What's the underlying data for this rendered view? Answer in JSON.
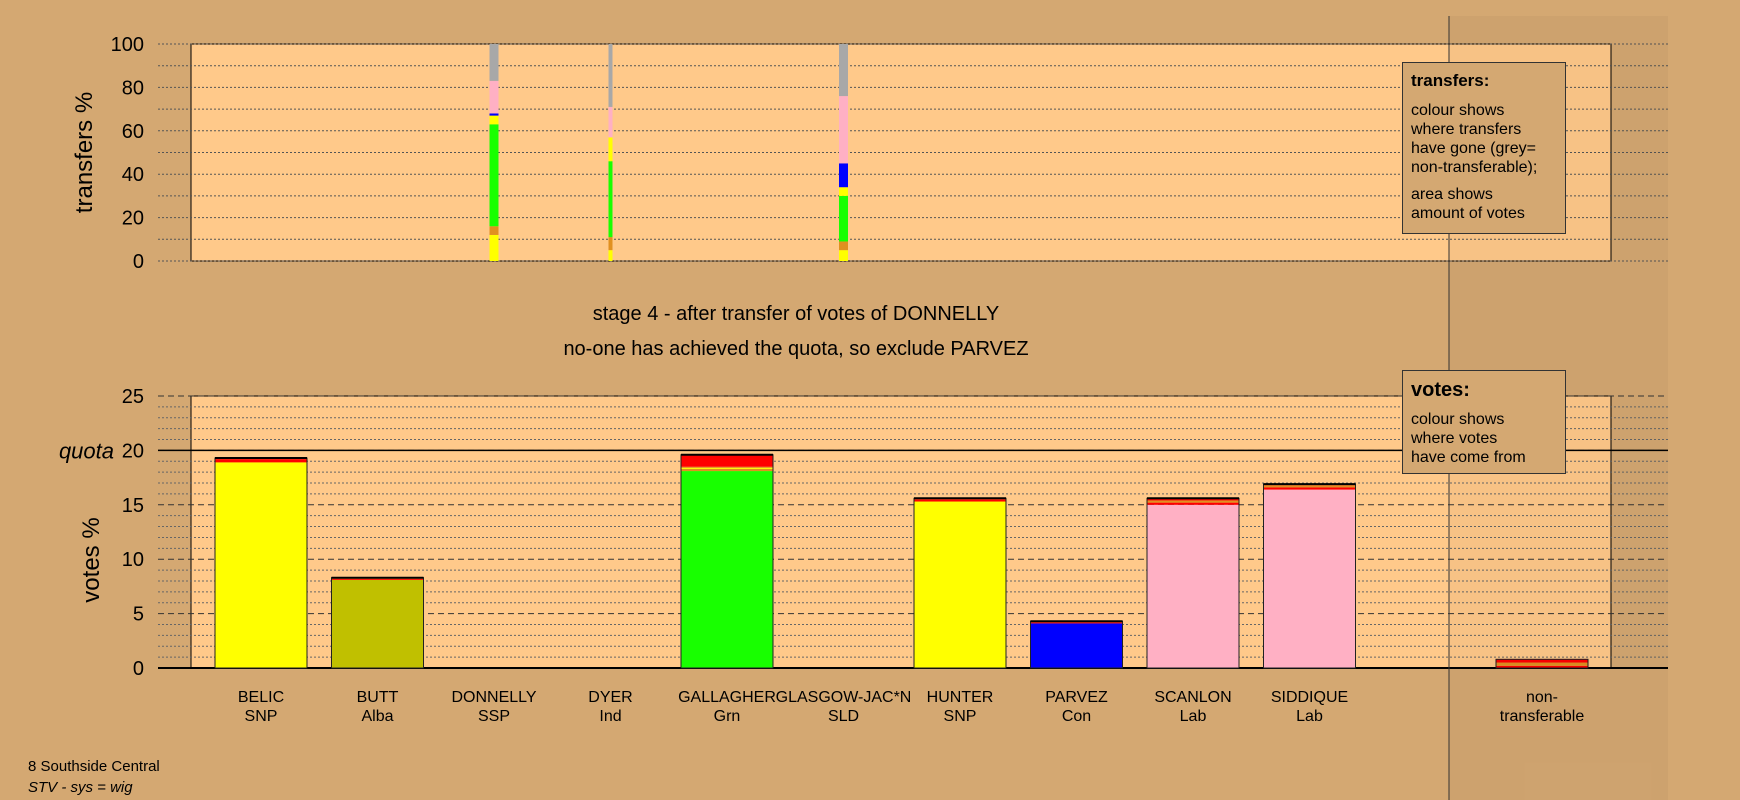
{
  "colors": {
    "background": "#d4a872",
    "plot_background": "#ffc98a",
    "SNP": "#ffff00",
    "Alba": "#c0c000",
    "Grn": "#18ff00",
    "Con": "#0000ff",
    "Lab": "#ffb0c4",
    "non-transferable": "#a8a8a8",
    "red": "#ff0000",
    "orange": "#e09020"
  },
  "stage_text": {
    "line1": "stage 4 - after transfer of votes of DONNELLY",
    "line2": "no-one has achieved the quota, so exclude PARVEZ"
  },
  "legend_transfers": {
    "title": "transfers:",
    "lines1": [
      "colour shows",
      "where transfers",
      "have gone (grey=",
      "non-transferable);"
    ],
    "lines2": [
      "area shows",
      "amount of votes"
    ]
  },
  "legend_votes": {
    "title": "votes:",
    "lines": [
      "colour shows",
      "where votes",
      "have come from"
    ]
  },
  "footer": {
    "constituency": "8 Southside Central",
    "system": "STV - sys = wig"
  },
  "chart_data": [
    {
      "type": "bar",
      "name": "transfers",
      "ylabel": "transfers %",
      "ylim": [
        0,
        100
      ],
      "yticks": [
        0,
        20,
        40,
        60,
        80,
        100
      ],
      "grid": true,
      "stacked_transfer_columns": [
        {
          "candidate": "DONNELLY",
          "segments": [
            {
              "color": "SNP",
              "from": 0,
              "to": 12
            },
            {
              "color": "orange",
              "from": 12,
              "to": 16
            },
            {
              "color": "Grn",
              "from": 16,
              "to": 63
            },
            {
              "color": "SNP",
              "from": 63,
              "to": 67
            },
            {
              "color": "Con",
              "from": 67,
              "to": 68
            },
            {
              "color": "Lab",
              "from": 68,
              "to": 83
            },
            {
              "color": "non-transferable",
              "from": 83,
              "to": 100
            }
          ]
        },
        {
          "candidate": "DYER",
          "segments": [
            {
              "color": "SNP",
              "from": 0,
              "to": 5
            },
            {
              "color": "orange",
              "from": 5,
              "to": 11
            },
            {
              "color": "Grn",
              "from": 11,
              "to": 46
            },
            {
              "color": "SNP",
              "from": 46,
              "to": 57
            },
            {
              "color": "Lab",
              "from": 57,
              "to": 71
            },
            {
              "color": "non-transferable",
              "from": 71,
              "to": 100
            }
          ]
        },
        {
          "candidate": "GLASGOW-JAC*N",
          "segments": [
            {
              "color": "SNP",
              "from": 0,
              "to": 5
            },
            {
              "color": "orange",
              "from": 5,
              "to": 9
            },
            {
              "color": "Grn",
              "from": 9,
              "to": 30
            },
            {
              "color": "SNP",
              "from": 30,
              "to": 34
            },
            {
              "color": "Con",
              "from": 34,
              "to": 45
            },
            {
              "color": "Lab",
              "from": 45,
              "to": 76
            },
            {
              "color": "non-transferable",
              "from": 76,
              "to": 100
            }
          ]
        }
      ]
    },
    {
      "type": "bar",
      "name": "votes",
      "ylabel": "votes %",
      "ylim": [
        0,
        25
      ],
      "yticks": [
        0,
        5,
        10,
        15,
        20,
        25
      ],
      "quota": 20,
      "quota_label": "quota",
      "grid": true,
      "categories": [
        {
          "name": "BELIC",
          "party": "SNP"
        },
        {
          "name": "BUTT",
          "party": "Alba"
        },
        {
          "name": "DONNELLY",
          "party": "SSP"
        },
        {
          "name": "DYER",
          "party": "Ind"
        },
        {
          "name": "GALLAGHER",
          "party": "Grn"
        },
        {
          "name": "GLASGOW-JAC*N",
          "party": "SLD"
        },
        {
          "name": "HUNTER",
          "party": "SNP"
        },
        {
          "name": "PARVEZ",
          "party": "Con"
        },
        {
          "name": "SCANLON",
          "party": "Lab"
        },
        {
          "name": "SIDDIQUE",
          "party": "Lab"
        }
      ],
      "values": [
        19.3,
        8.3,
        0,
        0,
        19.6,
        0,
        15.6,
        4.3,
        15.6,
        16.9
      ],
      "segments": [
        [
          {
            "color": "SNP",
            "value": 18.9
          },
          {
            "color": "red",
            "value": 0.3
          },
          {
            "color": "orange",
            "value": 0.1
          }
        ],
        [
          {
            "color": "Alba",
            "value": 8.1
          },
          {
            "color": "red",
            "value": 0.1
          },
          {
            "color": "orange",
            "value": 0.1
          }
        ],
        [],
        [],
        [
          {
            "color": "Grn",
            "value": 18.1
          },
          {
            "color": "orange",
            "value": 0.2
          },
          {
            "color": "SNP",
            "value": 0.1
          },
          {
            "color": "orange",
            "value": 0.1
          },
          {
            "color": "red",
            "value": 1.1
          }
        ],
        [],
        [
          {
            "color": "SNP",
            "value": 15.3
          },
          {
            "color": "red",
            "value": 0.2
          },
          {
            "color": "orange",
            "value": 0.1
          }
        ],
        [
          {
            "color": "Con",
            "value": 4.1
          },
          {
            "color": "red",
            "value": 0.1
          },
          {
            "color": "orange",
            "value": 0.1
          }
        ],
        [
          {
            "color": "Lab",
            "value": 15.0
          },
          {
            "color": "red",
            "value": 0.2
          },
          {
            "color": "orange",
            "value": 0.2
          },
          {
            "color": "red",
            "value": 0.2
          }
        ],
        [
          {
            "color": "Lab",
            "value": 16.4
          },
          {
            "color": "red",
            "value": 0.2
          },
          {
            "color": "orange",
            "value": 0.2
          },
          {
            "color": "red",
            "value": 0.1
          }
        ]
      ],
      "non_transferable": {
        "label1": "non-",
        "label2": "transferable",
        "segments": [
          {
            "color": "red",
            "value": 0.2
          },
          {
            "color": "orange",
            "value": 0.3
          },
          {
            "color": "red",
            "value": 0.3
          }
        ]
      }
    }
  ]
}
